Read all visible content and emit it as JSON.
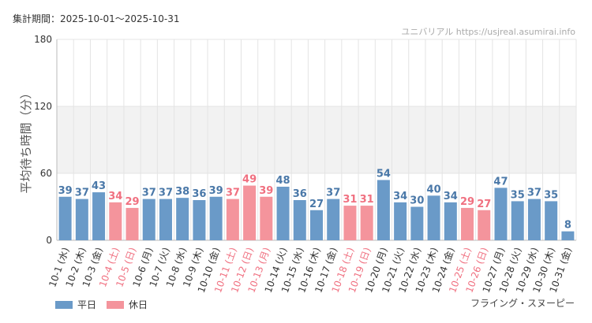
{
  "header": {
    "period_label": "集計期間：2025-10-01～2025-10-31"
  },
  "footer": {
    "legend_weekday": "平日",
    "legend_holiday": "休日",
    "ride_name": "フライング・スヌーピー"
  },
  "colors": {
    "weekday": "#6a9ac8",
    "holiday": "#f4949c",
    "weekday_label": "#4a78a8",
    "holiday_label": "#f07080",
    "band": "#f2f2f2",
    "grid": "#e4e4e4"
  },
  "chart_data": {
    "type": "bar",
    "title": "",
    "watermark": "ユニバリアル  https://usjreal.asumirai.info",
    "ylabel": "平均待ち時間（分）",
    "xlabel": "",
    "ylim": [
      0,
      180
    ],
    "yticks": [
      "0",
      "60",
      "120",
      "180"
    ],
    "categories": [
      "10-1 (水)",
      "10-2 (木)",
      "10-3 (金)",
      "10-4 (土)",
      "10-5 (日)",
      "10-6 (月)",
      "10-7 (火)",
      "10-8 (水)",
      "10-9 (木)",
      "10-10 (金)",
      "10-11 (土)",
      "10-12 (日)",
      "10-13 (月)",
      "10-14 (火)",
      "10-15 (水)",
      "10-16 (木)",
      "10-17 (金)",
      "10-18 (土)",
      "10-19 (日)",
      "10-20 (月)",
      "10-21 (火)",
      "10-22 (水)",
      "10-23 (木)",
      "10-24 (金)",
      "10-25 (土)",
      "10-26 (日)",
      "10-27 (月)",
      "10-28 (火)",
      "10-29 (水)",
      "10-30 (木)",
      "10-31 (金)"
    ],
    "values": [
      39,
      37,
      43,
      34,
      29,
      37,
      37,
      38,
      36,
      39,
      37,
      49,
      39,
      48,
      36,
      27,
      37,
      31,
      31,
      54,
      34,
      30,
      40,
      34,
      29,
      27,
      47,
      35,
      37,
      35,
      8
    ],
    "value_labels": [
      "39",
      "37",
      "43",
      "34",
      "29",
      "37",
      "37",
      "38",
      "36",
      "39",
      "37",
      "49",
      "39",
      "48",
      "36",
      "27",
      "37",
      "31",
      "31",
      "54",
      "34",
      "30",
      "40",
      "34",
      "29",
      "27",
      "47",
      "35",
      "37",
      "35",
      "8"
    ],
    "day_types": [
      "weekday",
      "weekday",
      "weekday",
      "holiday",
      "holiday",
      "weekday",
      "weekday",
      "weekday",
      "weekday",
      "weekday",
      "holiday",
      "holiday",
      "holiday",
      "weekday",
      "weekday",
      "weekday",
      "weekday",
      "holiday",
      "holiday",
      "weekday",
      "weekday",
      "weekday",
      "weekday",
      "weekday",
      "holiday",
      "holiday",
      "weekday",
      "weekday",
      "weekday",
      "weekday",
      "weekday"
    ],
    "series": [
      {
        "name": "平日"
      },
      {
        "name": "休日"
      }
    ]
  }
}
